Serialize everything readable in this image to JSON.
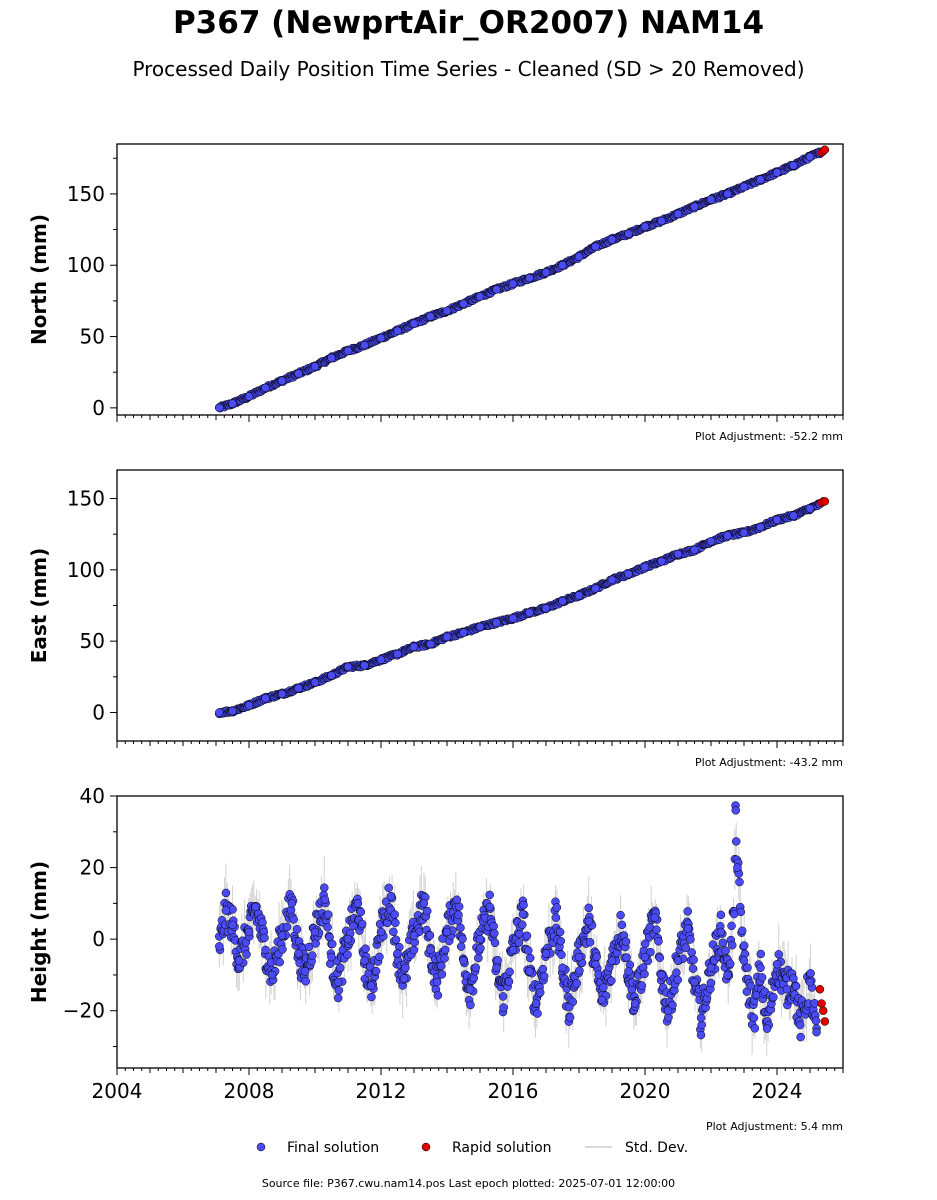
{
  "title": "P367 (NewprtAir_OR2007) NAM14",
  "subtitle": "Processed Daily Position Time Series - Cleaned (SD > 20 Removed)",
  "source_text": "Source file: P367.cwu.nam14.pos  Last epoch plotted: 2025-07-01 12:00:00",
  "colors": {
    "final": "#4b4bf5",
    "rapid": "#e10000",
    "stddev": "#9a9a9a",
    "edge": "#000000"
  },
  "legend": {
    "final_label": "Final solution",
    "rapid_label": "Rapid solution",
    "stddev_label": "Std. Dev."
  },
  "chart_data": [
    {
      "type": "scatter",
      "ylabel": "North (mm)",
      "adjustment": "Plot Adjustment: -52.2 mm",
      "xlim": [
        2004.0,
        2026.0
      ],
      "ylim": [
        -5,
        185
      ],
      "yticks": [
        "0",
        "50",
        "100",
        "150"
      ],
      "ytick_values": [
        0,
        50,
        100,
        150
      ],
      "series": [
        {
          "name": "Final solution",
          "x": [
            2007.1,
            2007.5,
            2008.0,
            2008.5,
            2009.0,
            2009.5,
            2010.0,
            2010.5,
            2011.0,
            2011.5,
            2012.0,
            2012.5,
            2013.0,
            2013.5,
            2014.0,
            2014.5,
            2015.0,
            2015.5,
            2016.0,
            2016.5,
            2017.0,
            2017.5,
            2018.0,
            2018.5,
            2019.0,
            2019.5,
            2020.0,
            2020.5,
            2021.0,
            2021.5,
            2022.0,
            2022.5,
            2023.0,
            2023.5,
            2024.0,
            2024.5,
            2025.0,
            2025.3
          ],
          "y": [
            0,
            3,
            8,
            14,
            19,
            24,
            29,
            35,
            40,
            44,
            49,
            54,
            59,
            64,
            68,
            73,
            78,
            83,
            87,
            91,
            95,
            100,
            106,
            113,
            118,
            122,
            127,
            131,
            136,
            141,
            146,
            150,
            155,
            160,
            165,
            170,
            176,
            179
          ]
        },
        {
          "name": "Rapid solution",
          "x": [
            2025.35,
            2025.4,
            2025.45
          ],
          "y": [
            179,
            180,
            181
          ]
        }
      ]
    },
    {
      "type": "scatter",
      "ylabel": "East (mm)",
      "adjustment": "Plot Adjustment: -43.2 mm",
      "xlim": [
        2004.0,
        2026.0
      ],
      "ylim": [
        -20,
        170
      ],
      "yticks": [
        "0",
        "50",
        "100",
        "150"
      ],
      "ytick_values": [
        0,
        50,
        100,
        150
      ],
      "series": [
        {
          "name": "Final solution",
          "x": [
            2007.1,
            2007.5,
            2008.0,
            2008.5,
            2009.0,
            2009.5,
            2010.0,
            2010.5,
            2011.0,
            2011.5,
            2012.0,
            2012.5,
            2013.0,
            2013.5,
            2014.0,
            2014.5,
            2015.0,
            2015.5,
            2016.0,
            2016.5,
            2017.0,
            2017.5,
            2018.0,
            2018.5,
            2019.0,
            2019.5,
            2020.0,
            2020.5,
            2021.0,
            2021.5,
            2022.0,
            2022.5,
            2023.0,
            2023.5,
            2024.0,
            2024.5,
            2025.0,
            2025.3
          ],
          "y": [
            0,
            1,
            5,
            10,
            13,
            17,
            21,
            26,
            32,
            33,
            37,
            41,
            46,
            48,
            53,
            56,
            60,
            63,
            66,
            70,
            73,
            78,
            82,
            87,
            93,
            97,
            102,
            106,
            111,
            114,
            120,
            124,
            126,
            130,
            135,
            138,
            143,
            146
          ]
        },
        {
          "name": "Rapid solution",
          "x": [
            2025.35,
            2025.4,
            2025.45
          ],
          "y": [
            147,
            148,
            148
          ]
        }
      ]
    },
    {
      "type": "scatter",
      "ylabel": "Height (mm)",
      "adjustment": "Plot Adjustment: 5.4 mm",
      "xlim": [
        2004.0,
        2026.0
      ],
      "ylim": [
        -36,
        40
      ],
      "yticks": [
        "−20",
        "0",
        "20",
        "40"
      ],
      "ytick_values": [
        -20,
        0,
        20,
        40
      ],
      "xticks": [
        "2004",
        "2008",
        "2012",
        "2016",
        "2020",
        "2024"
      ],
      "xtick_values": [
        2004,
        2008,
        2012,
        2016,
        2020,
        2024
      ],
      "series": [
        {
          "name": "Final solution",
          "x": [
            2007.1,
            2007.3,
            2007.5,
            2007.7,
            2008.0,
            2008.2,
            2008.5,
            2008.7,
            2009.0,
            2009.3,
            2009.5,
            2009.7,
            2010.0,
            2010.3,
            2010.5,
            2010.7,
            2011.0,
            2011.3,
            2011.5,
            2011.7,
            2012.0,
            2012.3,
            2012.5,
            2012.7,
            2013.0,
            2013.3,
            2013.5,
            2013.7,
            2014.0,
            2014.3,
            2014.5,
            2014.7,
            2015.0,
            2015.3,
            2015.5,
            2015.7,
            2016.0,
            2016.3,
            2016.5,
            2016.7,
            2017.0,
            2017.3,
            2017.5,
            2017.7,
            2018.0,
            2018.3,
            2018.5,
            2018.7,
            2019.0,
            2019.3,
            2019.5,
            2019.7,
            2020.0,
            2020.3,
            2020.5,
            2020.7,
            2021.0,
            2021.3,
            2021.5,
            2021.7,
            2022.0,
            2022.3,
            2022.5,
            2022.7,
            2022.75,
            2022.8,
            2023.0,
            2023.3,
            2023.5,
            2023.7,
            2024.0,
            2024.3,
            2024.5,
            2024.7,
            2025.0,
            2025.2
          ],
          "y": [
            -2,
            8,
            4,
            -6,
            2,
            9,
            -3,
            -10,
            1,
            10,
            -4,
            -9,
            2,
            11,
            -5,
            -12,
            0,
            10,
            -6,
            -13,
            2,
            12,
            -4,
            -11,
            1,
            10,
            -3,
            -12,
            2,
            11,
            -6,
            -14,
            0,
            9,
            -8,
            -16,
            -3,
            7,
            -9,
            -18,
            -4,
            6,
            -8,
            -19,
            -5,
            5,
            -7,
            -17,
            -6,
            4,
            -9,
            -18,
            -5,
            6,
            -10,
            -20,
            -6,
            3,
            -12,
            -22,
            -8,
            2,
            -10,
            7,
            36,
            20,
            -6,
            -22,
            -8,
            -25,
            -7,
            -14,
            -11,
            -24,
            -12,
            -26
          ]
        },
        {
          "name": "Rapid solution",
          "x": [
            2025.3,
            2025.35,
            2025.4,
            2025.45
          ],
          "y": [
            -14,
            -18,
            -20,
            -23
          ]
        }
      ]
    }
  ]
}
